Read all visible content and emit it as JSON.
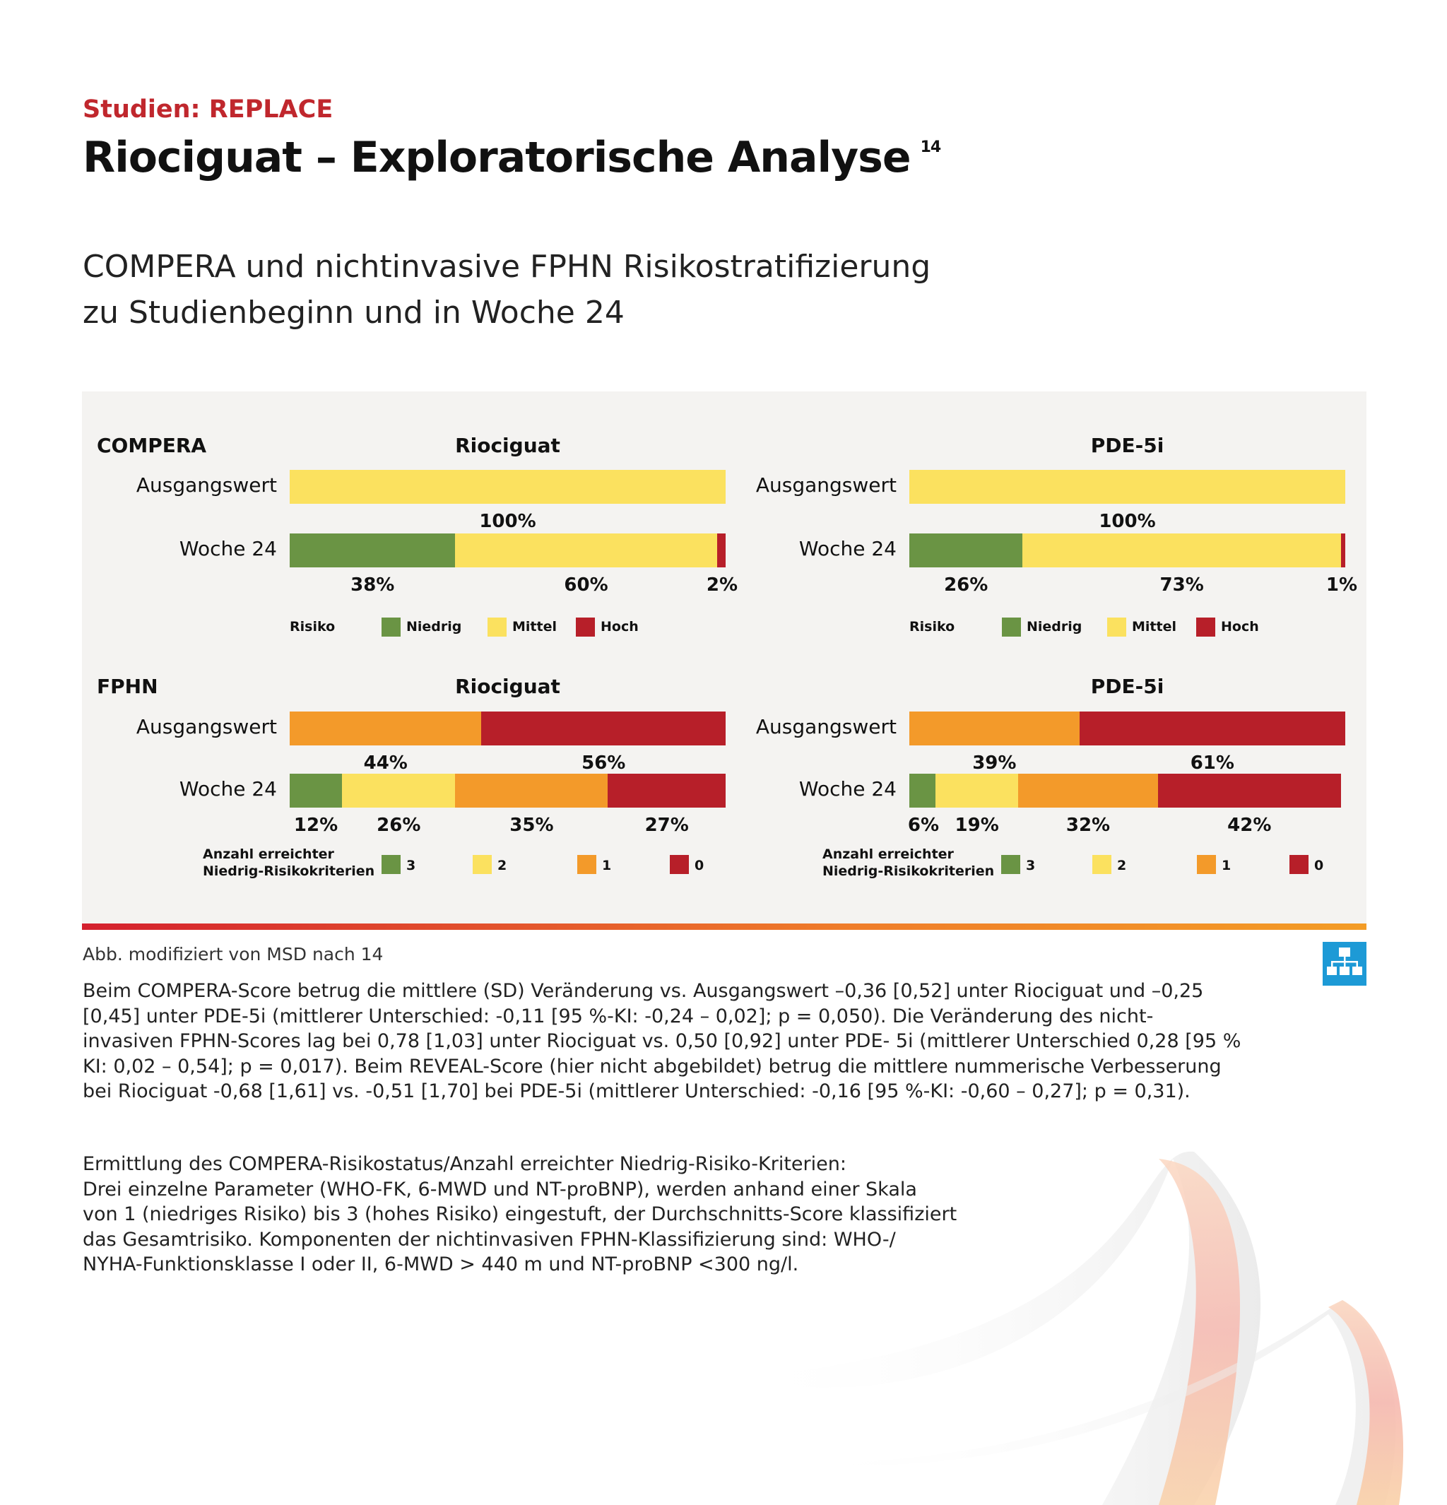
{
  "header": {
    "kicker": "Studien: REPLACE",
    "title": "Riociguat – Exploratorische Analyse",
    "title_ref": "14",
    "subtitle_line1": "COMPERA und nichtinvasive FPHN Risikostratifizierung",
    "subtitle_line2": "zu Studienbeginn und in Woche 24"
  },
  "colors": {
    "green": "#6a9444",
    "yellow": "#fbe15f",
    "orange": "#f39a2a",
    "red": "#b71f29",
    "accent_red": "#c0272d",
    "icon_blue": "#1d9ad6"
  },
  "chart_data": [
    {
      "type": "bar",
      "stacked": true,
      "orientation": "horizontal",
      "section": "COMPERA",
      "title": "Riociguat",
      "categories": [
        "Ausgangswert",
        "Woche 24"
      ],
      "series": [
        {
          "name": "Niedrig",
          "values": [
            0,
            38
          ]
        },
        {
          "name": "Mittel",
          "values": [
            100,
            60
          ]
        },
        {
          "name": "Hoch",
          "values": [
            0,
            2
          ]
        }
      ],
      "labels": [
        [
          "100%"
        ],
        [
          "38%",
          "60%",
          "2%"
        ]
      ],
      "legend_title": "Risiko",
      "xlim": [
        0,
        100
      ]
    },
    {
      "type": "bar",
      "stacked": true,
      "orientation": "horizontal",
      "section": "COMPERA",
      "title": "PDE-5i",
      "categories": [
        "Ausgangswert",
        "Woche 24"
      ],
      "series": [
        {
          "name": "Niedrig",
          "values": [
            0,
            26
          ]
        },
        {
          "name": "Mittel",
          "values": [
            100,
            73
          ]
        },
        {
          "name": "Hoch",
          "values": [
            0,
            1
          ]
        }
      ],
      "labels": [
        [
          "100%"
        ],
        [
          "26%",
          "73%",
          "1%"
        ]
      ],
      "legend_title": "Risiko",
      "xlim": [
        0,
        100
      ]
    },
    {
      "type": "bar",
      "stacked": true,
      "orientation": "horizontal",
      "section": "FPHN",
      "title": "Riociguat",
      "categories": [
        "Ausgangswert",
        "Woche 24"
      ],
      "series": [
        {
          "name": "3",
          "values": [
            0,
            12
          ]
        },
        {
          "name": "2",
          "values": [
            0,
            26
          ]
        },
        {
          "name": "1",
          "values": [
            44,
            35
          ]
        },
        {
          "name": "0",
          "values": [
            56,
            27
          ]
        }
      ],
      "labels": [
        [
          "44%",
          "56%"
        ],
        [
          "12%",
          "26%",
          "35%",
          "27%"
        ]
      ],
      "legend_title": "Anzahl erreichter Niedrig-Risikokriterien",
      "xlim": [
        0,
        100
      ]
    },
    {
      "type": "bar",
      "stacked": true,
      "orientation": "horizontal",
      "section": "FPHN",
      "title": "PDE-5i",
      "categories": [
        "Ausgangswert",
        "Woche 24"
      ],
      "series": [
        {
          "name": "3",
          "values": [
            0,
            6
          ]
        },
        {
          "name": "2",
          "values": [
            0,
            19
          ]
        },
        {
          "name": "1",
          "values": [
            39,
            32
          ]
        },
        {
          "name": "0",
          "values": [
            61,
            42
          ]
        }
      ],
      "labels": [
        [
          "39%",
          "61%"
        ],
        [
          "6%",
          "19%",
          "32%",
          "42%"
        ]
      ],
      "legend_title": "Anzahl erreichter Niedrig-Risikokriterien",
      "xlim": [
        0,
        100
      ]
    }
  ],
  "legend": {
    "compera": {
      "title": "Risiko",
      "items": [
        "Niedrig",
        "Mittel",
        "Hoch"
      ]
    },
    "fphn": {
      "title_line1": "Anzahl erreichter",
      "title_line2": "Niedrig-Risikokriterien",
      "items": [
        "3",
        "2",
        "1",
        "0"
      ]
    }
  },
  "caption": "Abb. modifiziert von MSD nach 14",
  "icon": "diagram-icon",
  "paragraph1": [
    "Beim COMPERA-Score betrug die mittlere (SD) Veränderung vs. Ausgangswert –0,36 [0,52] unter Riociguat und –0,25",
    "[0,45] unter PDE-5i (mittlerer Unterschied: -0,11 [95 %-KI: -0,24 – 0,02]; p = 0,050). Die Veränderung des nicht-",
    "invasiven FPHN-Scores lag bei 0,78 [1,03] unter Riociguat vs. 0,50 [0,92] unter PDE- 5i (mittlerer Unterschied 0,28 [95 %",
    "KI: 0,02 – 0,54]; p = 0,017). Beim REVEAL-Score (hier nicht abgebildet) betrug die mittlere nummerische Verbesserung",
    "bei Riociguat -0,68 [1,61] vs. -0,51 [1,70] bei PDE-5i (mittlerer Unterschied: -0,16 [95 %-KI: -0,60 – 0,27]; p = 0,31)."
  ],
  "paragraph2": [
    "Ermittlung des COMPERA-Risikostatus/Anzahl erreichter Niedrig-Risiko-Kriterien:",
    "Drei einzelne Parameter (WHO-FK, 6-MWD und NT-proBNP), werden anhand einer Skala",
    "von 1 (niedriges Risiko) bis 3 (hohes Risiko) eingestuft, der Durchschnitts-Score klassifiziert",
    "das Gesamtrisiko. Komponenten der nichtinvasiven FPHN-Klassifizierung sind: WHO-/",
    "NYHA-Funktionsklasse I oder II, 6-MWD > 440 m und NT-proBNP <300 ng/l."
  ]
}
